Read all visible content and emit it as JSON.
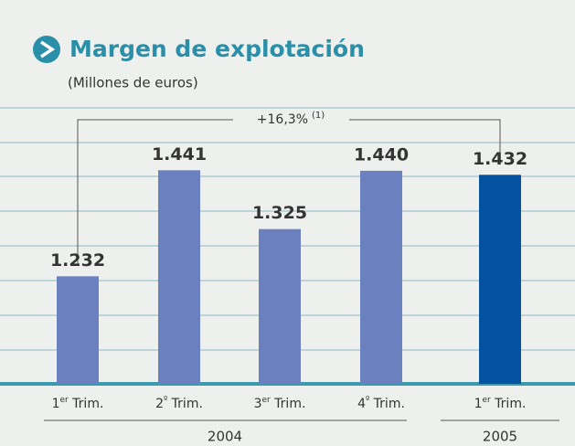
{
  "chart_data": {
    "type": "bar",
    "title": "Margen de explotación",
    "subtitle": "(Millones de euros)",
    "categories": [
      "1er Trim.",
      "2º Trim.",
      "3er Trim.",
      "4º Trim.",
      "1er Trim."
    ],
    "groups": [
      "2004",
      "2005"
    ],
    "values": [
      1232,
      1441,
      1325,
      1440,
      1432
    ],
    "value_labels": [
      "1.232",
      "1.441",
      "1.325",
      "1.440",
      "1.432"
    ],
    "colors": [
      "#6b80be",
      "#6b80be",
      "#6b80be",
      "#6b80be",
      "#0452a0"
    ],
    "annotation": "+16,3%",
    "annotation_note": "(1)",
    "ylim": [
      1020,
      1564
    ]
  }
}
